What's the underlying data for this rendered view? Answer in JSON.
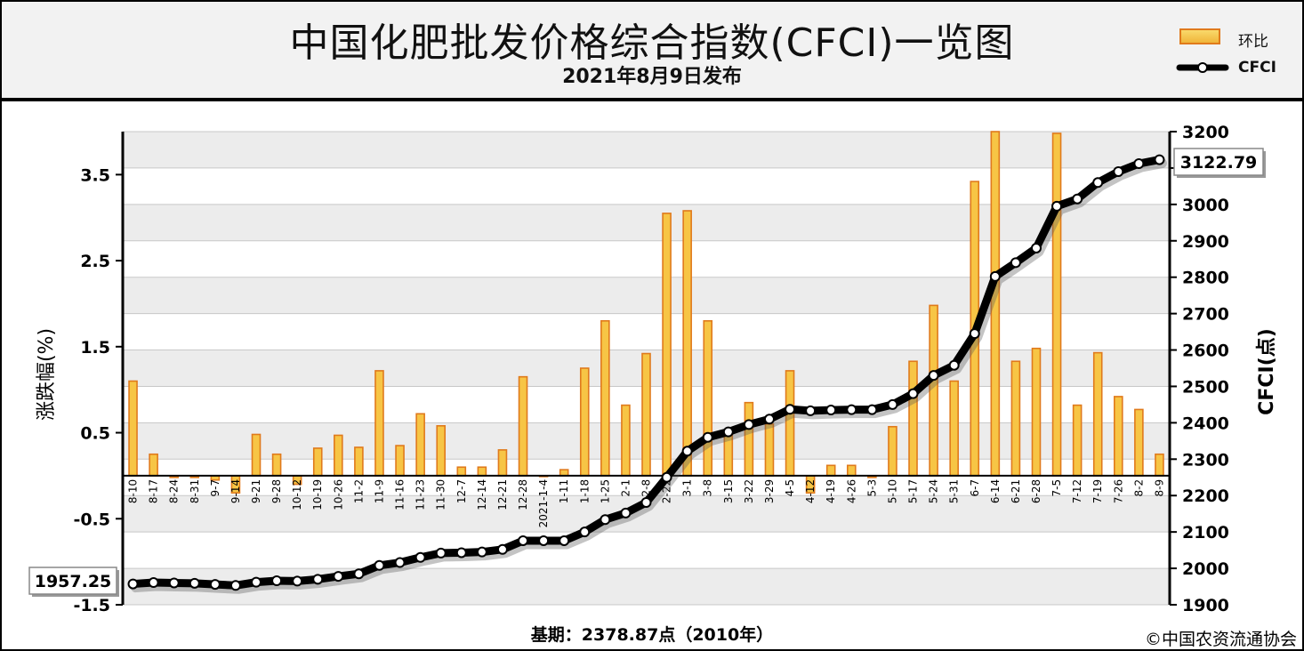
{
  "title": "中国化肥批发价格综合指数(CFCI)一览图",
  "subtitle": "2021年8月9日发布",
  "legend": {
    "bar_label": "环比",
    "line_label": "CFCI"
  },
  "left_axis_label": "涨跌幅(%)",
  "right_axis_label": "CFCI(点)",
  "footer_base": "基期：2378.87点（2010年）",
  "footer_copyright": "©中国农资流通协会",
  "callout_start": "1957.25",
  "callout_end": "3122.79",
  "colors": {
    "bar_fill": "#f7c545",
    "bar_stroke": "#e07a1c",
    "line": "#000000",
    "plot_bg_a": "#ffffff",
    "plot_bg_b": "#ececec"
  },
  "chart_data": {
    "type": "bar+line",
    "categories": [
      "8-10",
      "8-17",
      "8-24",
      "8-31",
      "9-7",
      "9-14",
      "9-21",
      "9-28",
      "10-12",
      "10-19",
      "10-26",
      "11-2",
      "11-9",
      "11-16",
      "11-23",
      "11-30",
      "12-7",
      "12-14",
      "12-21",
      "12-28",
      "2021-1-4",
      "1-11",
      "1-18",
      "1-25",
      "2-1",
      "2-8",
      "2-22",
      "3-1",
      "3-8",
      "3-15",
      "3-22",
      "3-29",
      "4-5",
      "4-12",
      "4-19",
      "4-26",
      "5-3",
      "5-10",
      "5-17",
      "5-24",
      "5-31",
      "6-7",
      "6-14",
      "6-21",
      "6-28",
      "7-5",
      "7-12",
      "7-19",
      "7-26",
      "8-2",
      "8-9"
    ],
    "series": [
      {
        "name": "环比",
        "axis": "left",
        "type": "bar",
        "values": [
          1.1,
          0.25,
          -0.02,
          -0.02,
          -0.05,
          -0.2,
          0.48,
          0.25,
          -0.1,
          0.32,
          0.47,
          0.33,
          1.22,
          0.35,
          0.72,
          0.58,
          0.1,
          0.1,
          0.3,
          1.15,
          0.0,
          0.07,
          1.25,
          1.8,
          0.82,
          1.42,
          3.05,
          3.08,
          1.8,
          0.53,
          0.85,
          0.6,
          1.22,
          -0.2,
          0.12,
          0.12,
          -0.02,
          0.57,
          1.33,
          1.98,
          1.1,
          3.42,
          4.0,
          1.33,
          1.48,
          3.98,
          0.82,
          1.43,
          0.92,
          0.77,
          0.25
        ]
      },
      {
        "name": "CFCI",
        "axis": "right",
        "type": "line",
        "values": [
          1957.25,
          1961,
          1960,
          1959,
          1956,
          1953,
          1962,
          1966,
          1965,
          1970,
          1978,
          1985,
          2008,
          2016,
          2030,
          2042,
          2043,
          2045,
          2052,
          2076,
          2076,
          2076,
          2100,
          2134,
          2152,
          2181,
          2250,
          2322,
          2360,
          2375,
          2395,
          2410,
          2437,
          2433,
          2435,
          2436,
          2436,
          2450,
          2480,
          2530,
          2558,
          2645,
          2802,
          2840,
          2880,
          2995,
          3015,
          3060,
          3090,
          3112,
          3122.79
        ]
      }
    ],
    "left_axis": {
      "min": -1.5,
      "max": 4.0,
      "ticks": [
        3.5,
        2.5,
        1.5,
        0.5,
        -0.5,
        -1.5
      ]
    },
    "right_axis": {
      "min": 1900,
      "max": 3200,
      "ticks": [
        3200,
        3100,
        3000,
        2900,
        2800,
        2700,
        2600,
        2500,
        2400,
        2300,
        2200,
        2100,
        2000,
        1900
      ]
    },
    "grid": true,
    "legend_position": "top-right"
  }
}
